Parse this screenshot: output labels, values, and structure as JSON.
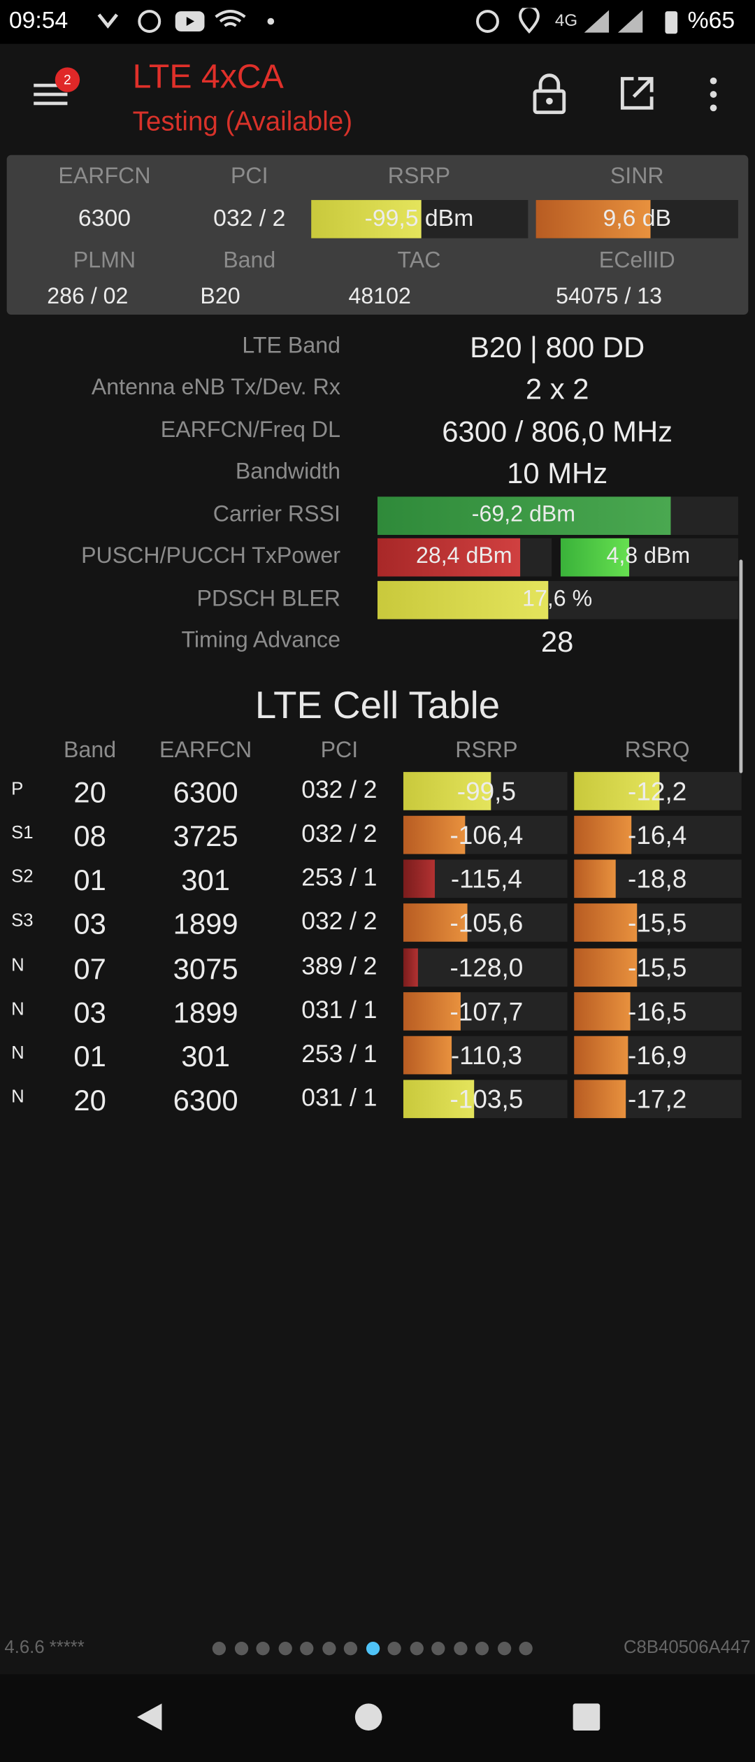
{
  "status": {
    "time": "09:54",
    "network": "4G",
    "battery": "%65"
  },
  "header": {
    "badge": "2",
    "title": "LTE 4xCA",
    "subtitle": "Testing (Available)"
  },
  "summary": {
    "row1_labels": [
      "EARFCN",
      "PCI",
      "RSRP",
      "SINR"
    ],
    "row1_values": [
      "6300",
      "032 / 2",
      "-99,5 dBm",
      "9,6 dB"
    ],
    "row2_labels": [
      "PLMN",
      "Band",
      "TAC",
      "ECellID"
    ],
    "row2_values": [
      "286 / 02",
      "B20",
      "48102",
      "54075 / 13"
    ]
  },
  "details": [
    {
      "label": "LTE Band",
      "value": "B20 | 800 DD"
    },
    {
      "label": "Antenna eNB Tx/Dev. Rx",
      "value": "2 x 2"
    },
    {
      "label": "EARFCN/Freq DL",
      "value": "6300 / 806,0 MHz"
    },
    {
      "label": "Bandwidth",
      "value": "10 MHz"
    },
    {
      "label": "Carrier RSSI",
      "value": "-69,2 dBm"
    },
    {
      "label": "PUSCH/PUCCH TxPower",
      "values": [
        "28,4 dBm",
        "4,8 dBm"
      ]
    },
    {
      "label": "PDSCH BLER",
      "value": "17,6 %"
    },
    {
      "label": "Timing Advance",
      "value": "28"
    }
  ],
  "cell_table": {
    "title": "LTE Cell Table",
    "columns": [
      "Band",
      "EARFCN",
      "PCI",
      "RSRP",
      "RSRQ"
    ],
    "rows": [
      [
        "P",
        "20",
        "6300",
        "032 / 2",
        "-99,5",
        "-12,2"
      ],
      [
        "S1",
        "08",
        "3725",
        "032 / 2",
        "-106,4",
        "-16,4"
      ],
      [
        "S2",
        "01",
        "301",
        "253 / 1",
        "-115,4",
        "-18,8"
      ],
      [
        "S3",
        "03",
        "1899",
        "032 / 2",
        "-105,6",
        "-15,5"
      ],
      [
        "N",
        "07",
        "3075",
        "389 / 2",
        "-128,0",
        "-15,5"
      ],
      [
        "N",
        "03",
        "1899",
        "031 / 1",
        "-107,7",
        "-16,5"
      ],
      [
        "N",
        "01",
        "301",
        "253 / 1",
        "-110,3",
        "-16,9"
      ],
      [
        "N",
        "20",
        "6300",
        "031 / 1",
        "-103,5",
        "-17,2"
      ]
    ]
  },
  "footer": {
    "version": "4.6.6 *****",
    "device_id": "C8B40506A447"
  }
}
